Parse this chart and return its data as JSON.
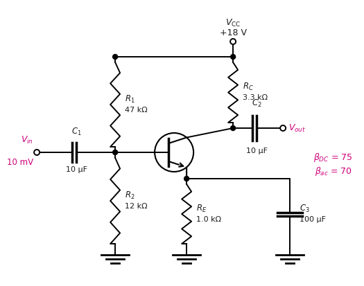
{
  "background_color": "#ffffff",
  "text_color_black": "#1a1a1a",
  "text_color_magenta": "#cc007a",
  "vcc_label": "$V_{\\mathrm{CC}}$",
  "vcc_value": "+18 V",
  "vin_label": "$V_{in}$",
  "vin_value": "10 mV",
  "R1_label": "$R_1$",
  "R1_value": "47 kΩ",
  "R2_label": "$R_2$",
  "R2_value": "12 kΩ",
  "RC_label": "$R_C$",
  "RC_value": "3.3 kΩ",
  "RE_label": "$R_E$",
  "RE_value": "1.0 kΩ",
  "C1_label": "$C_1$",
  "C1_value": "10 μF",
  "C2_label": "$C_2$",
  "C2_value": "10 μF",
  "C3_label": "$C_3$",
  "C3_value": "100 μF",
  "Vout_label": "$V_{out}$",
  "beta_dc": "$\\beta_{DC}$ = 75",
  "beta_ac": "$\\beta_{ac}$ = 70"
}
